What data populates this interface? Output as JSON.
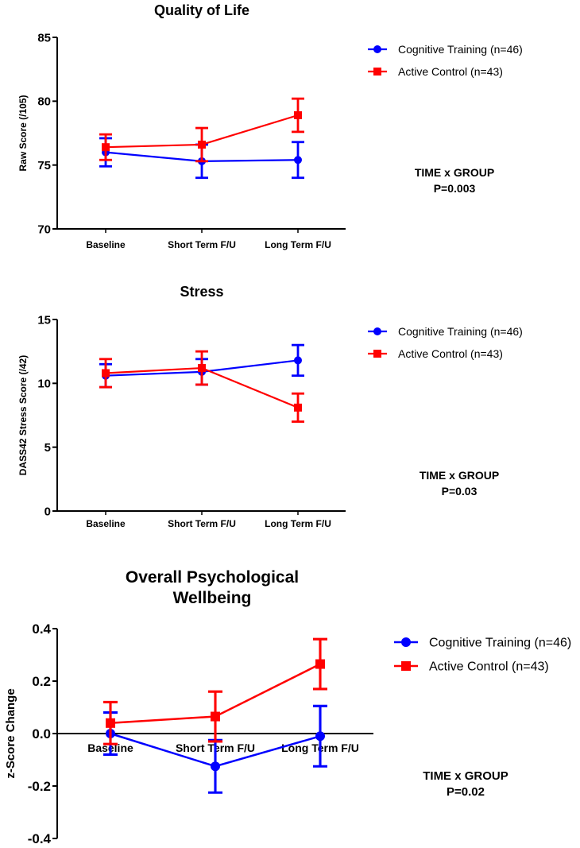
{
  "chart_data": [
    {
      "type": "line",
      "title": [
        "Quality of Life"
      ],
      "ylabel": "Raw  Score (/105)",
      "xlabel": "",
      "ylim": [
        70,
        85
      ],
      "yticks": [
        70,
        75,
        80,
        85
      ],
      "ytick_labels": [
        "70",
        "75",
        "80",
        "85"
      ],
      "categories": [
        "Baseline",
        "Short Term F/U",
        "Long Term F/U"
      ],
      "series": [
        {
          "name": "Cognitive Training (n=46)",
          "color": "#0000ff",
          "marker": "circle",
          "values": [
            76.0,
            75.3,
            75.4
          ],
          "errors": [
            1.1,
            1.3,
            1.4
          ]
        },
        {
          "name": "Active Control (n=43)",
          "color": "#ff0000",
          "marker": "square",
          "values": [
            76.4,
            76.6,
            78.9
          ],
          "errors": [
            1.0,
            1.3,
            1.3
          ]
        }
      ],
      "annotation": [
        "TIME x GROUP",
        "P=0.003"
      ]
    },
    {
      "type": "line",
      "title": [
        "Stress"
      ],
      "ylabel": "DASS42 Stress  Score (/42)",
      "xlabel": "",
      "ylim": [
        0,
        15
      ],
      "yticks": [
        0,
        5,
        10,
        15
      ],
      "ytick_labels": [
        "0",
        "5",
        "10",
        "15"
      ],
      "categories": [
        "Baseline",
        "Short Term F/U",
        "Long Term F/U"
      ],
      "series": [
        {
          "name": "Cognitive Training (n=46)",
          "color": "#0000ff",
          "marker": "circle",
          "values": [
            10.6,
            10.9,
            11.8
          ],
          "errors": [
            0.9,
            1.0,
            1.2
          ]
        },
        {
          "name": "Active Control (n=43)",
          "color": "#ff0000",
          "marker": "square",
          "values": [
            10.8,
            11.2,
            8.1
          ],
          "errors": [
            1.1,
            1.3,
            1.1
          ]
        }
      ],
      "annotation": [
        "TIME x GROUP",
        "P=0.03"
      ]
    },
    {
      "type": "line",
      "title": [
        "Overall Psychological",
        "Wellbeing"
      ],
      "ylabel": "z-Score Change",
      "xlabel": "",
      "ylim": [
        -0.4,
        0.4
      ],
      "yticks": [
        -0.4,
        -0.2,
        0.0,
        0.2,
        0.4
      ],
      "ytick_labels": [
        "-0.4",
        "-0.2",
        "0.0",
        "0.2",
        "0.4"
      ],
      "categories": [
        "Baseline",
        "Short Term F/U",
        "Long Term F/U"
      ],
      "series": [
        {
          "name": "Cognitive Training (n=46)",
          "color": "#0000ff",
          "marker": "circle",
          "values": [
            0.0,
            -0.125,
            -0.01
          ],
          "errors": [
            0.08,
            0.1,
            0.115
          ]
        },
        {
          "name": "Active Control (n=43)",
          "color": "#ff0000",
          "marker": "square",
          "values": [
            0.04,
            0.065,
            0.265
          ],
          "errors": [
            0.08,
            0.095,
            0.095
          ]
        }
      ],
      "annotation": [
        "TIME x GROUP",
        "P=0.02"
      ]
    }
  ]
}
